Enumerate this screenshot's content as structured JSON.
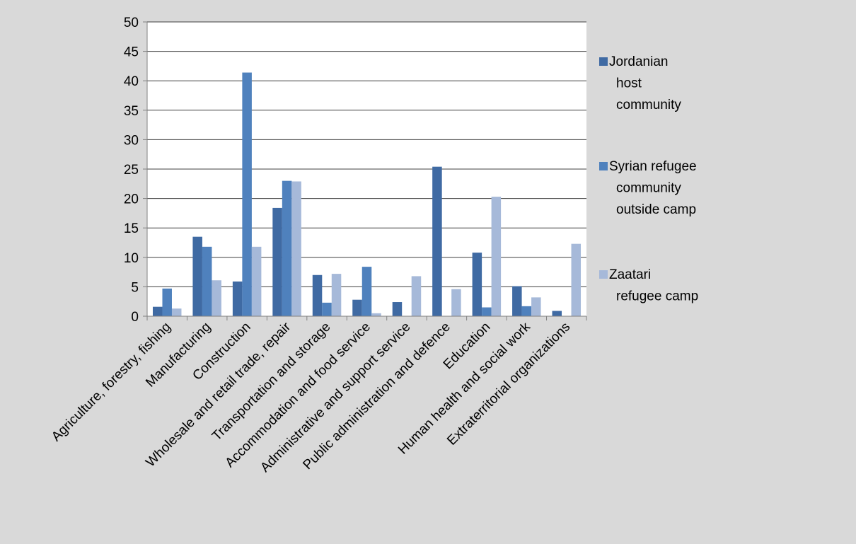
{
  "colors": {
    "background": "#d9d9d9",
    "plot_background": "#ffffff",
    "gridline": "#404040",
    "axis": "#808080"
  },
  "chart_data": {
    "type": "bar",
    "title": "",
    "xlabel": "",
    "ylabel": "",
    "ylim": [
      0,
      50
    ],
    "yticks": [
      0,
      5,
      10,
      15,
      20,
      25,
      30,
      35,
      40,
      45,
      50
    ],
    "grid": true,
    "legend_position": "right",
    "categories": [
      "Agriculture, forestry, fishing",
      "Manufacturing",
      "Construction",
      "Wholesale and retail trade, repair",
      "Transportation and storage",
      "Accommodation and food service",
      "Administrative and support service",
      "Public administration and defence",
      "Education",
      "Human health and social work",
      "Extraterritorial organizations"
    ],
    "series": [
      {
        "name": "Jordanian host community",
        "legend_lines": [
          "Jordanian",
          "host",
          "community"
        ],
        "color": "#3f6aa3",
        "values": [
          1.6,
          13.5,
          5.9,
          18.4,
          7.0,
          2.8,
          2.4,
          25.4,
          10.8,
          5.1,
          0.9
        ]
      },
      {
        "name": "Syrian refugee community outside camp",
        "legend_lines": [
          "Syrian refugee",
          "community",
          "outside camp"
        ],
        "color": "#4f81bd",
        "values": [
          4.7,
          11.8,
          41.4,
          23.0,
          2.3,
          8.4,
          0,
          0,
          1.5,
          1.7,
          0
        ]
      },
      {
        "name": "Zaatari refugee camp",
        "legend_lines": [
          "Zaatari",
          "refugee camp"
        ],
        "color": "#a6b9d9",
        "values": [
          1.3,
          6.1,
          11.8,
          22.9,
          7.2,
          0.5,
          6.8,
          4.6,
          20.3,
          3.2,
          12.3
        ]
      }
    ]
  }
}
